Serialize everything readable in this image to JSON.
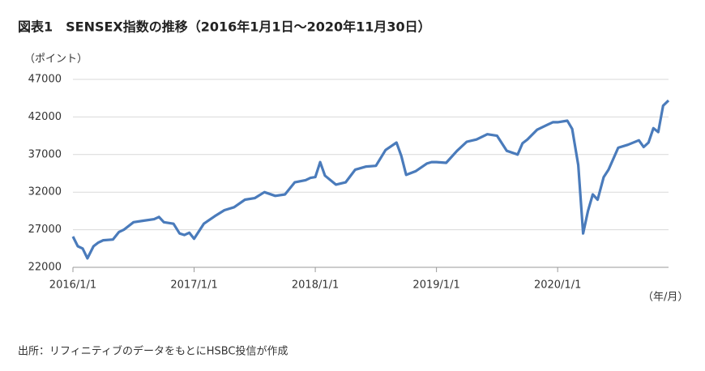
{
  "chart_data": {
    "type": "line",
    "title": "図表1　SENSEX指数の推移（2016年1月1日～2020年11月30日）",
    "y_label": "（ポイント）",
    "x_label": "（年/月）",
    "source": "出所：リフィニティブのデータをもとにHSBC投信が作成",
    "color": "#4a7bbb",
    "grid": true,
    "x": [
      2016.0,
      2016.04,
      2016.08,
      2016.12,
      2016.17,
      2016.21,
      2016.25,
      2016.33,
      2016.38,
      2016.42,
      2016.5,
      2016.58,
      2016.67,
      2016.71,
      2016.75,
      2016.83,
      2016.88,
      2016.92,
      2016.96,
      2017.0,
      2017.08,
      2017.17,
      2017.25,
      2017.33,
      2017.42,
      2017.5,
      2017.58,
      2017.67,
      2017.75,
      2017.83,
      2017.92,
      2017.96,
      2018.0,
      2018.04,
      2018.08,
      2018.17,
      2018.25,
      2018.33,
      2018.42,
      2018.5,
      2018.58,
      2018.67,
      2018.71,
      2018.75,
      2018.83,
      2018.92,
      2018.96,
      2019.0,
      2019.08,
      2019.17,
      2019.25,
      2019.33,
      2019.42,
      2019.5,
      2019.58,
      2019.67,
      2019.71,
      2019.75,
      2019.83,
      2019.92,
      2019.96,
      2020.0,
      2020.08,
      2020.12,
      2020.17,
      2020.21,
      2020.25,
      2020.29,
      2020.33,
      2020.38,
      2020.42,
      2020.5,
      2020.58,
      2020.67,
      2020.71,
      2020.75,
      2020.79,
      2020.83,
      2020.87,
      2020.915
    ],
    "values": [
      26100,
      24800,
      24500,
      23200,
      24800,
      25300,
      25600,
      25700,
      26700,
      27000,
      28000,
      28200,
      28400,
      28700,
      28000,
      27800,
      26500,
      26300,
      26600,
      25800,
      27800,
      28800,
      29600,
      30000,
      31000,
      31200,
      32000,
      31500,
      31700,
      33300,
      33600,
      33900,
      34000,
      36000,
      34200,
      33000,
      33300,
      35000,
      35400,
      35500,
      37600,
      38600,
      36800,
      34300,
      34800,
      35800,
      36000,
      36000,
      35900,
      37500,
      38700,
      39000,
      39700,
      39500,
      37500,
      37000,
      38500,
      39000,
      40300,
      41000,
      41300,
      41300,
      41500,
      40400,
      35600,
      26500,
      29500,
      31700,
      31000,
      34000,
      35000,
      37900,
      38300,
      38900,
      38000,
      38600,
      40500,
      40000,
      43500,
      44200
    ],
    "xlim": [
      2016,
      2020.915
    ],
    "xticks": [
      {
        "value": 2016,
        "label": "2016/1/1"
      },
      {
        "value": 2017,
        "label": "2017/1/1"
      },
      {
        "value": 2018,
        "label": "2018/1/1"
      },
      {
        "value": 2019,
        "label": "2019/1/1"
      },
      {
        "value": 2020,
        "label": "2020/1/1"
      }
    ],
    "ylim": [
      22000,
      47000
    ],
    "yticks": [
      22000,
      27000,
      32000,
      37000,
      42000,
      47000
    ]
  }
}
